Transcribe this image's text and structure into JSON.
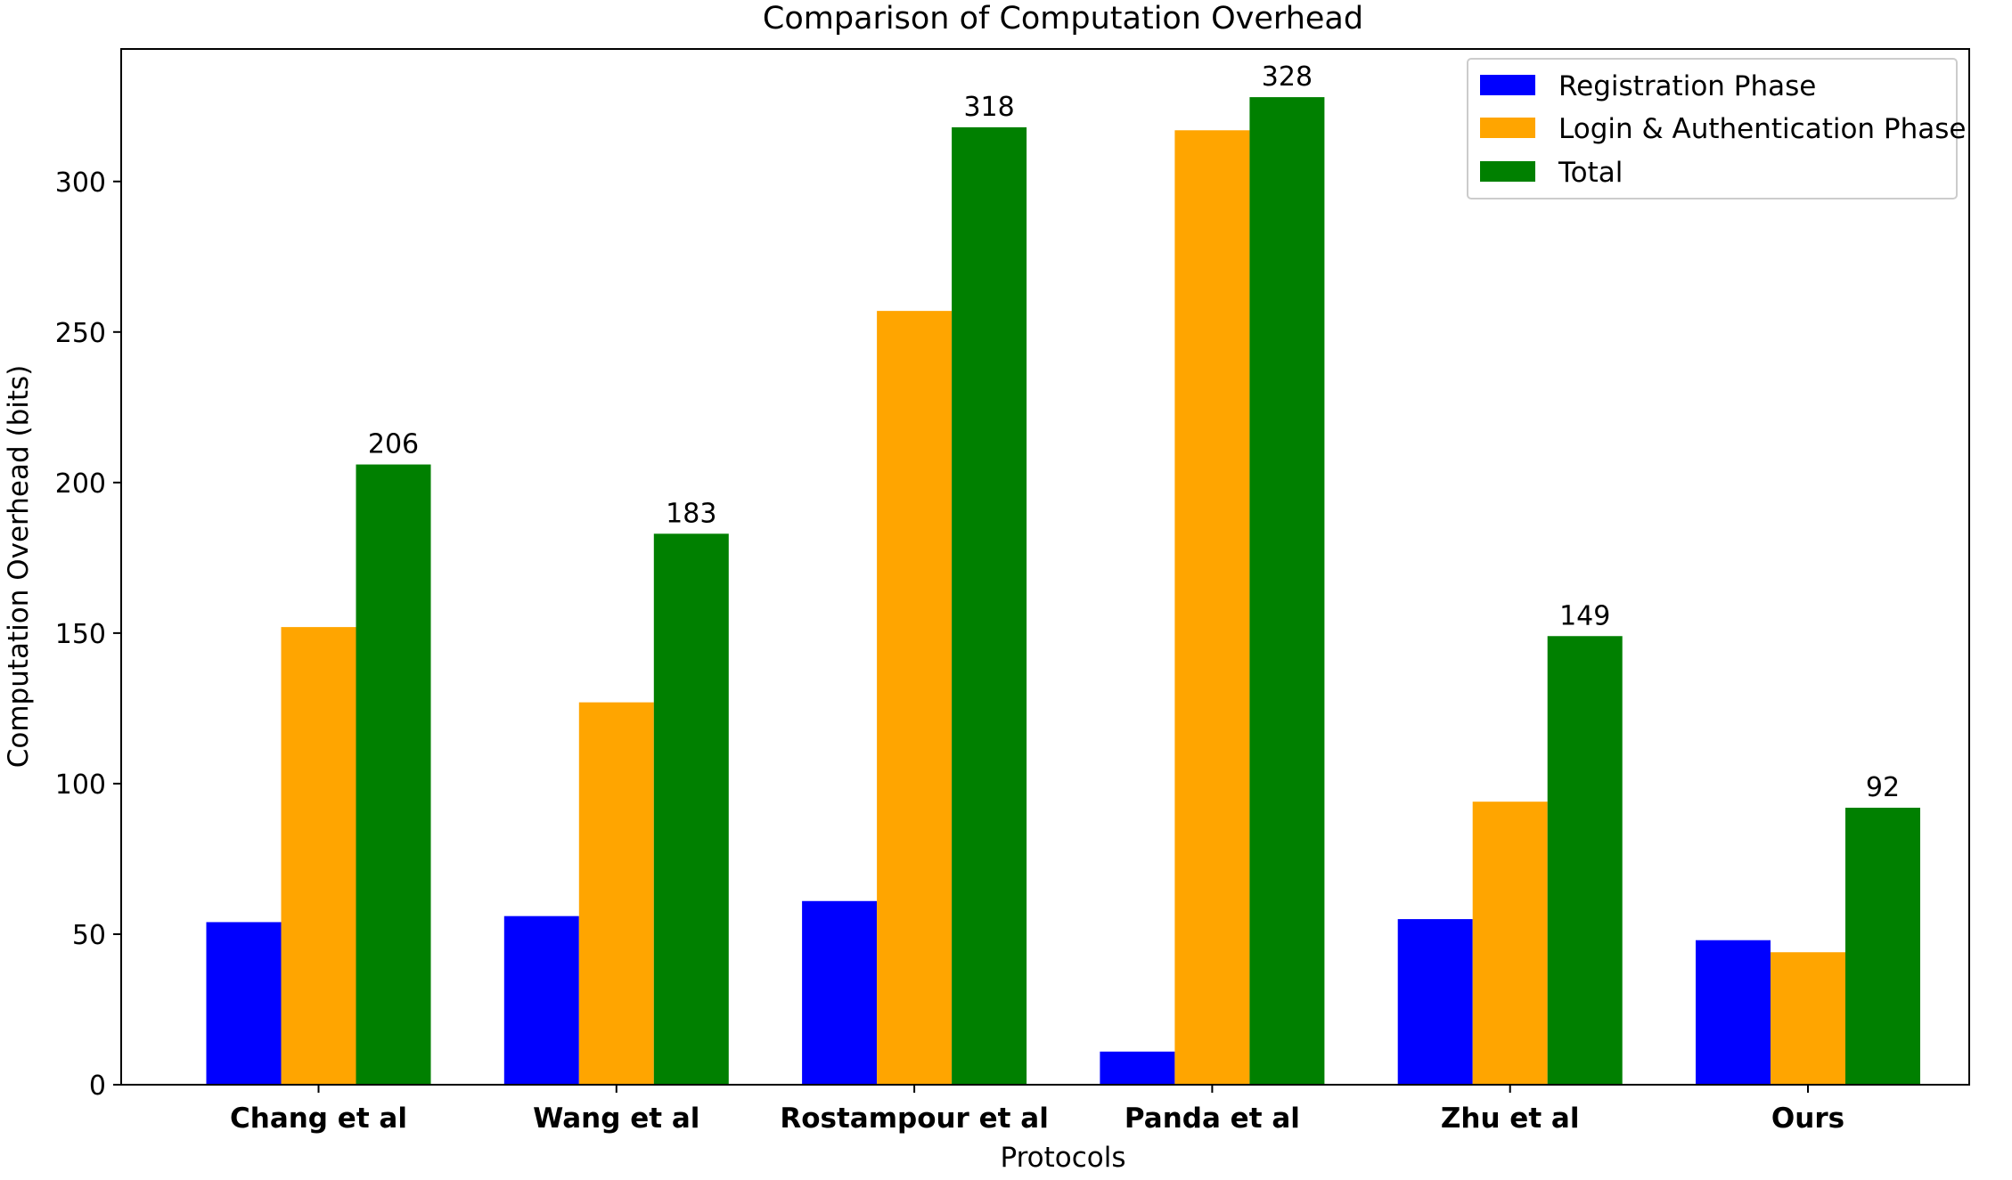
{
  "chart_data": {
    "type": "bar",
    "title": "Comparison of Computation  Overhead",
    "xlabel": "Protocols",
    "ylabel": "Computation  Overhead (bits)",
    "categories": [
      "Chang et al",
      "Wang et al",
      "Rostampour et al",
      "Panda et al",
      "Zhu et al",
      "Ours"
    ],
    "series": [
      {
        "name": "Registration Phase",
        "color": "#0000ff",
        "values": [
          54,
          56,
          61,
          11,
          55,
          48
        ]
      },
      {
        "name": "Login & Authentication Phase",
        "color": "#ffa500",
        "values": [
          152,
          127,
          257,
          317,
          94,
          44
        ]
      },
      {
        "name": "Total",
        "color": "#008000",
        "values": [
          206,
          183,
          318,
          328,
          149,
          92
        ]
      }
    ],
    "bar_labels": {
      "series": "Total",
      "labels": [
        "206",
        "183",
        "318",
        "328",
        "149",
        "92"
      ]
    },
    "ylim": [
      0,
      344
    ],
    "yticks": [
      0,
      50,
      100,
      150,
      200,
      250,
      300
    ],
    "ytick_labels": [
      "0",
      "50",
      "100",
      "150",
      "200",
      "250",
      "300"
    ],
    "legend_position": "upper right",
    "grid": false
  }
}
